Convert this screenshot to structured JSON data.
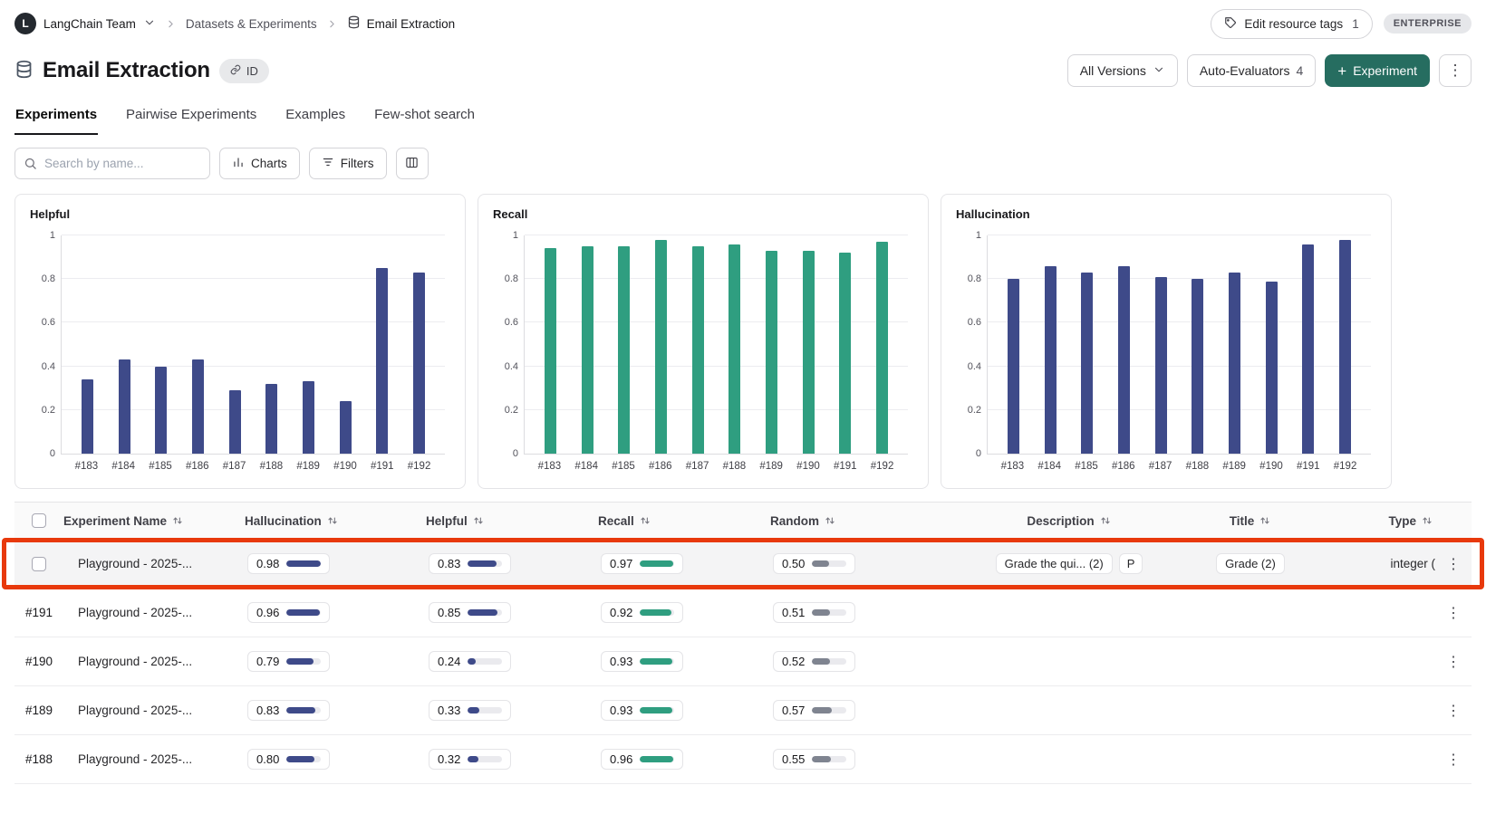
{
  "colors": {
    "indigo_bar": "#3e4a89",
    "teal_bar": "#2f9e80",
    "gray_bar": "#7f8490",
    "primary_button": "#266d60",
    "highlight_red": "#e8390c"
  },
  "icons": {
    "overflow_menu": "⋮",
    "plus": "+"
  },
  "topbar": {
    "team_initial": "L",
    "team": "LangChain Team",
    "breadcrumb_section": "Datasets & Experiments",
    "breadcrumb_page": "Email Extraction",
    "edit_tags_label": "Edit resource tags",
    "edit_tags_count": "1",
    "plan_badge": "ENTERPRISE"
  },
  "header": {
    "title": "Email Extraction",
    "id_label": "ID",
    "versions_label": "All Versions",
    "auto_evaluators_label": "Auto-Evaluators",
    "auto_evaluators_count": "4",
    "new_experiment_label": "Experiment"
  },
  "tabs": [
    {
      "label": "Experiments",
      "active": true
    },
    {
      "label": "Pairwise Experiments",
      "active": false
    },
    {
      "label": "Examples",
      "active": false
    },
    {
      "label": "Few-shot search",
      "active": false
    }
  ],
  "toolbar": {
    "search_placeholder": "Search by name...",
    "charts_label": "Charts",
    "filters_label": "Filters"
  },
  "chart_data": [
    {
      "type": "bar",
      "title": "Helpful",
      "categories": [
        "#183",
        "#184",
        "#185",
        "#186",
        "#187",
        "#188",
        "#189",
        "#190",
        "#191",
        "#192"
      ],
      "values": [
        0.34,
        0.43,
        0.4,
        0.43,
        0.29,
        0.32,
        0.33,
        0.24,
        0.85,
        0.83
      ],
      "ylim": [
        0,
        1
      ],
      "yticks": [
        "1",
        "0.8",
        "0.6",
        "0.4",
        "0.2",
        "0"
      ],
      "color": "#3e4a89",
      "grid": true,
      "legend": "none"
    },
    {
      "type": "bar",
      "title": "Recall",
      "categories": [
        "#183",
        "#184",
        "#185",
        "#186",
        "#187",
        "#188",
        "#189",
        "#190",
        "#191",
        "#192"
      ],
      "values": [
        0.94,
        0.95,
        0.95,
        0.98,
        0.95,
        0.96,
        0.93,
        0.93,
        0.92,
        0.97
      ],
      "ylim": [
        0,
        1
      ],
      "yticks": [
        "1",
        "0.8",
        "0.6",
        "0.4",
        "0.2",
        "0"
      ],
      "color": "#2f9e80",
      "grid": true,
      "legend": "none"
    },
    {
      "type": "bar",
      "title": "Hallucination",
      "categories": [
        "#183",
        "#184",
        "#185",
        "#186",
        "#187",
        "#188",
        "#189",
        "#190",
        "#191",
        "#192"
      ],
      "values": [
        0.8,
        0.86,
        0.83,
        0.86,
        0.81,
        0.8,
        0.83,
        0.79,
        0.96,
        0.98
      ],
      "ylim": [
        0,
        1
      ],
      "yticks": [
        "1",
        "0.8",
        "0.6",
        "0.4",
        "0.2",
        "0"
      ],
      "color": "#3e4a89",
      "grid": true,
      "legend": "none"
    }
  ],
  "table": {
    "columns": [
      {
        "key": "name",
        "label": "Experiment Name"
      },
      {
        "key": "hallucination",
        "label": "Hallucination"
      },
      {
        "key": "helpful",
        "label": "Helpful"
      },
      {
        "key": "recall",
        "label": "Recall"
      },
      {
        "key": "random",
        "label": "Random"
      },
      {
        "key": "description",
        "label": "Description"
      },
      {
        "key": "title",
        "label": "Title"
      },
      {
        "key": "type",
        "label": "Type"
      }
    ],
    "metric_colors": {
      "hallucination": "#3e4a89",
      "helpful": "#3e4a89",
      "recall": "#2f9e80",
      "random": "#7f8490"
    },
    "rows": [
      {
        "id": "",
        "name": "Playground - 2025-...",
        "hallucination": 0.98,
        "helpful": 0.83,
        "recall": 0.97,
        "random": 0.5,
        "description": "Grade the qui... (2)",
        "description_badge": "P",
        "title": "Grade (2)",
        "type": "integer (",
        "highlighted": true
      },
      {
        "id": "#191",
        "name": "Playground - 2025-...",
        "hallucination": 0.96,
        "helpful": 0.85,
        "recall": 0.92,
        "random": 0.51,
        "highlighted": false
      },
      {
        "id": "#190",
        "name": "Playground - 2025-...",
        "hallucination": 0.79,
        "helpful": 0.24,
        "recall": 0.93,
        "random": 0.52,
        "highlighted": false
      },
      {
        "id": "#189",
        "name": "Playground - 2025-...",
        "hallucination": 0.83,
        "helpful": 0.33,
        "recall": 0.93,
        "random": 0.57,
        "highlighted": false
      },
      {
        "id": "#188",
        "name": "Playground - 2025-...",
        "hallucination": 0.8,
        "helpful": 0.32,
        "recall": 0.96,
        "random": 0.55,
        "highlighted": false
      }
    ]
  }
}
